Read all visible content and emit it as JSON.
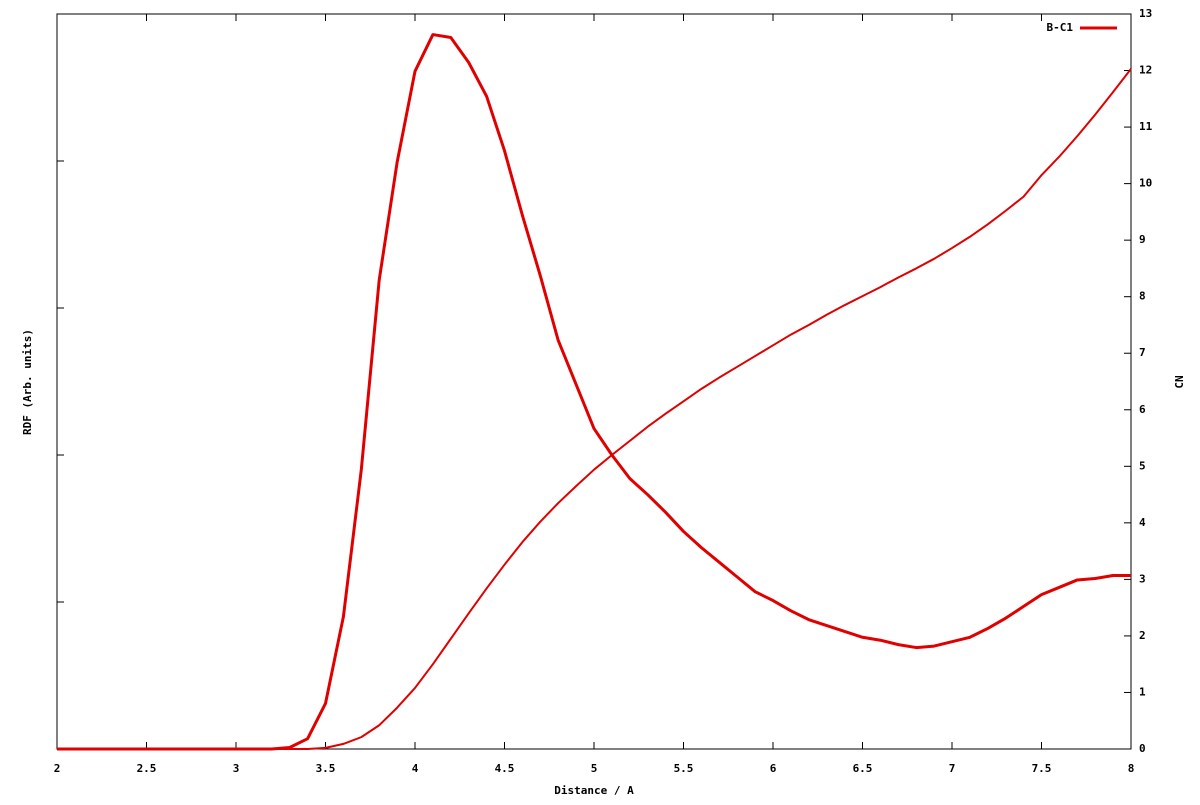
{
  "chart_data": {
    "type": "line",
    "xlabel": "Distance / A",
    "ylabel": "RDF (Arb. units)",
    "y2label": "CN",
    "x": [
      2.0,
      2.1,
      2.2,
      2.3,
      2.4,
      2.5,
      2.6,
      2.7,
      2.8,
      2.9,
      3.0,
      3.1,
      3.2,
      3.3,
      3.4,
      3.5,
      3.6,
      3.7,
      3.8,
      3.9,
      4.0,
      4.1,
      4.2,
      4.3,
      4.4,
      4.5,
      4.6,
      4.7,
      4.8,
      4.9,
      5.0,
      5.1,
      5.2,
      5.3,
      5.4,
      5.5,
      5.6,
      5.7,
      5.8,
      5.9,
      6.0,
      6.1,
      6.2,
      6.3,
      6.4,
      6.5,
      6.6,
      6.7,
      6.8,
      6.9,
      7.0,
      7.1,
      7.2,
      7.3,
      7.4,
      7.5,
      7.6,
      7.7,
      7.8,
      7.9,
      8.0
    ],
    "series": [
      {
        "name": "B-C1",
        "color": "#e00000",
        "values": [
          0,
          0,
          0,
          0,
          0,
          0,
          0,
          0,
          0,
          0,
          0,
          0,
          0,
          0.01,
          0.07,
          0.31,
          0.9,
          1.9,
          3.19,
          3.99,
          4.61,
          4.86,
          4.84,
          4.67,
          4.44,
          4.07,
          3.63,
          3.22,
          2.78,
          2.48,
          2.18,
          2.0,
          1.84,
          1.73,
          1.61,
          1.48,
          1.37,
          1.27,
          1.17,
          1.07,
          1.01,
          0.94,
          0.88,
          0.84,
          0.8,
          0.76,
          0.74,
          0.71,
          0.69,
          0.7,
          0.73,
          0.76,
          0.82,
          0.89,
          0.97,
          1.05,
          1.1,
          1.15,
          1.16,
          1.18,
          1.18
        ]
      },
      {
        "color": "#e00000",
        "axis": "y2",
        "values": [
          0,
          0,
          0,
          0,
          0,
          0,
          0,
          0,
          0,
          0,
          0,
          0,
          0,
          0,
          0,
          0.02,
          0.09,
          0.21,
          0.42,
          0.73,
          1.08,
          1.5,
          1.95,
          2.4,
          2.84,
          3.26,
          3.66,
          4.02,
          4.35,
          4.65,
          4.94,
          5.2,
          5.45,
          5.7,
          5.93,
          6.15,
          6.37,
          6.57,
          6.76,
          6.95,
          7.14,
          7.33,
          7.5,
          7.68,
          7.85,
          8.01,
          8.17,
          8.34,
          8.5,
          8.67,
          8.86,
          9.06,
          9.28,
          9.52,
          9.77,
          10.15,
          10.48,
          10.84,
          11.22,
          11.62,
          12.03
        ]
      }
    ],
    "xlim": [
      2,
      8
    ],
    "xticks": [
      2,
      2.5,
      3,
      3.5,
      4,
      4.5,
      5,
      5.5,
      6,
      6.5,
      7,
      7.5,
      8
    ],
    "ylim": [
      0,
      5
    ],
    "yticks": [
      0,
      1,
      2,
      3,
      4,
      5
    ],
    "ytick_labels": false,
    "y2lim": [
      0,
      13
    ],
    "y2ticks": [
      0,
      1,
      2,
      3,
      4,
      5,
      6,
      7,
      8,
      9,
      10,
      11,
      12,
      13
    ],
    "legend": "top-right"
  }
}
